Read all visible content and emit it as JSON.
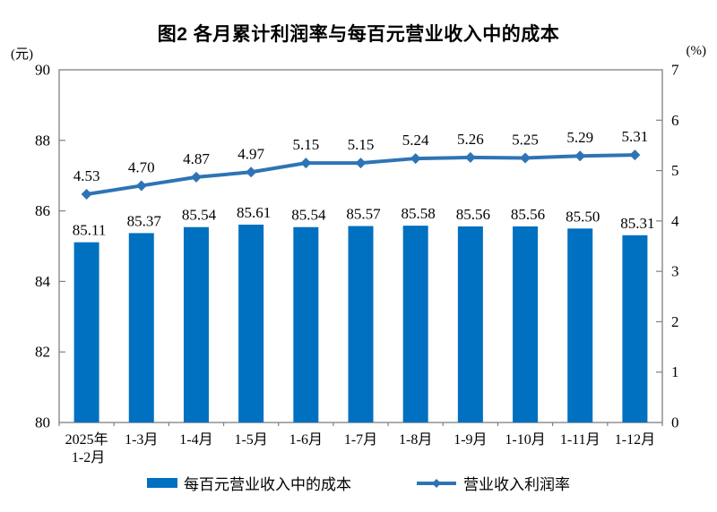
{
  "title": "图2  各月累计利润率与每百元营业收入中的成本",
  "left_axis": {
    "unit": "(元)",
    "min": 80,
    "max": 90,
    "step": 2,
    "tick_labels": [
      "80",
      "82",
      "84",
      "86",
      "88",
      "90"
    ]
  },
  "right_axis": {
    "unit": "(%)",
    "min": 0,
    "max": 7,
    "step": 1,
    "tick_labels": [
      "0",
      "1",
      "2",
      "3",
      "4",
      "5",
      "6",
      "7"
    ]
  },
  "legend": [
    {
      "label": "每百元营业收入中的成本",
      "type": "bar"
    },
    {
      "label": "营业收入利润率",
      "type": "line"
    }
  ],
  "colors": {
    "bar": "#0070C0",
    "line": "#2E74B5",
    "axis": "#808080",
    "text": "#000000"
  },
  "chart_data": {
    "type": "bar",
    "title": "图2  各月累计利润率与每百元营业收入中的成本",
    "categories": [
      "2025年\n1-2月",
      "1-3月",
      "1-4月",
      "1-5月",
      "1-6月",
      "1-7月",
      "1-8月",
      "1-9月",
      "1-10月",
      "1-11月",
      "1-12月"
    ],
    "series": [
      {
        "name": "每百元营业收入中的成本",
        "type": "bar",
        "axis": "left",
        "values": [
          85.11,
          85.37,
          85.54,
          85.61,
          85.54,
          85.57,
          85.58,
          85.56,
          85.56,
          85.5,
          85.31
        ],
        "labels": [
          "85.11",
          "85.37",
          "85.54",
          "85.61",
          "85.54",
          "85.57",
          "85.58",
          "85.56",
          "85.56",
          "85.50",
          "85.31"
        ]
      },
      {
        "name": "营业收入利润率",
        "type": "line",
        "axis": "right",
        "values": [
          4.53,
          4.7,
          4.87,
          4.97,
          5.15,
          5.15,
          5.24,
          5.26,
          5.25,
          5.29,
          5.31
        ],
        "labels": [
          "4.53",
          "4.70",
          "4.87",
          "4.97",
          "5.15",
          "5.15",
          "5.24",
          "5.26",
          "5.25",
          "5.29",
          "5.31"
        ]
      }
    ],
    "xlabel": "",
    "ylabel_left": "(元)",
    "ylabel_right": "(%)",
    "ylim_left": [
      80,
      90
    ],
    "ylim_right": [
      0,
      7
    ],
    "grid": false,
    "legend_position": "bottom"
  }
}
